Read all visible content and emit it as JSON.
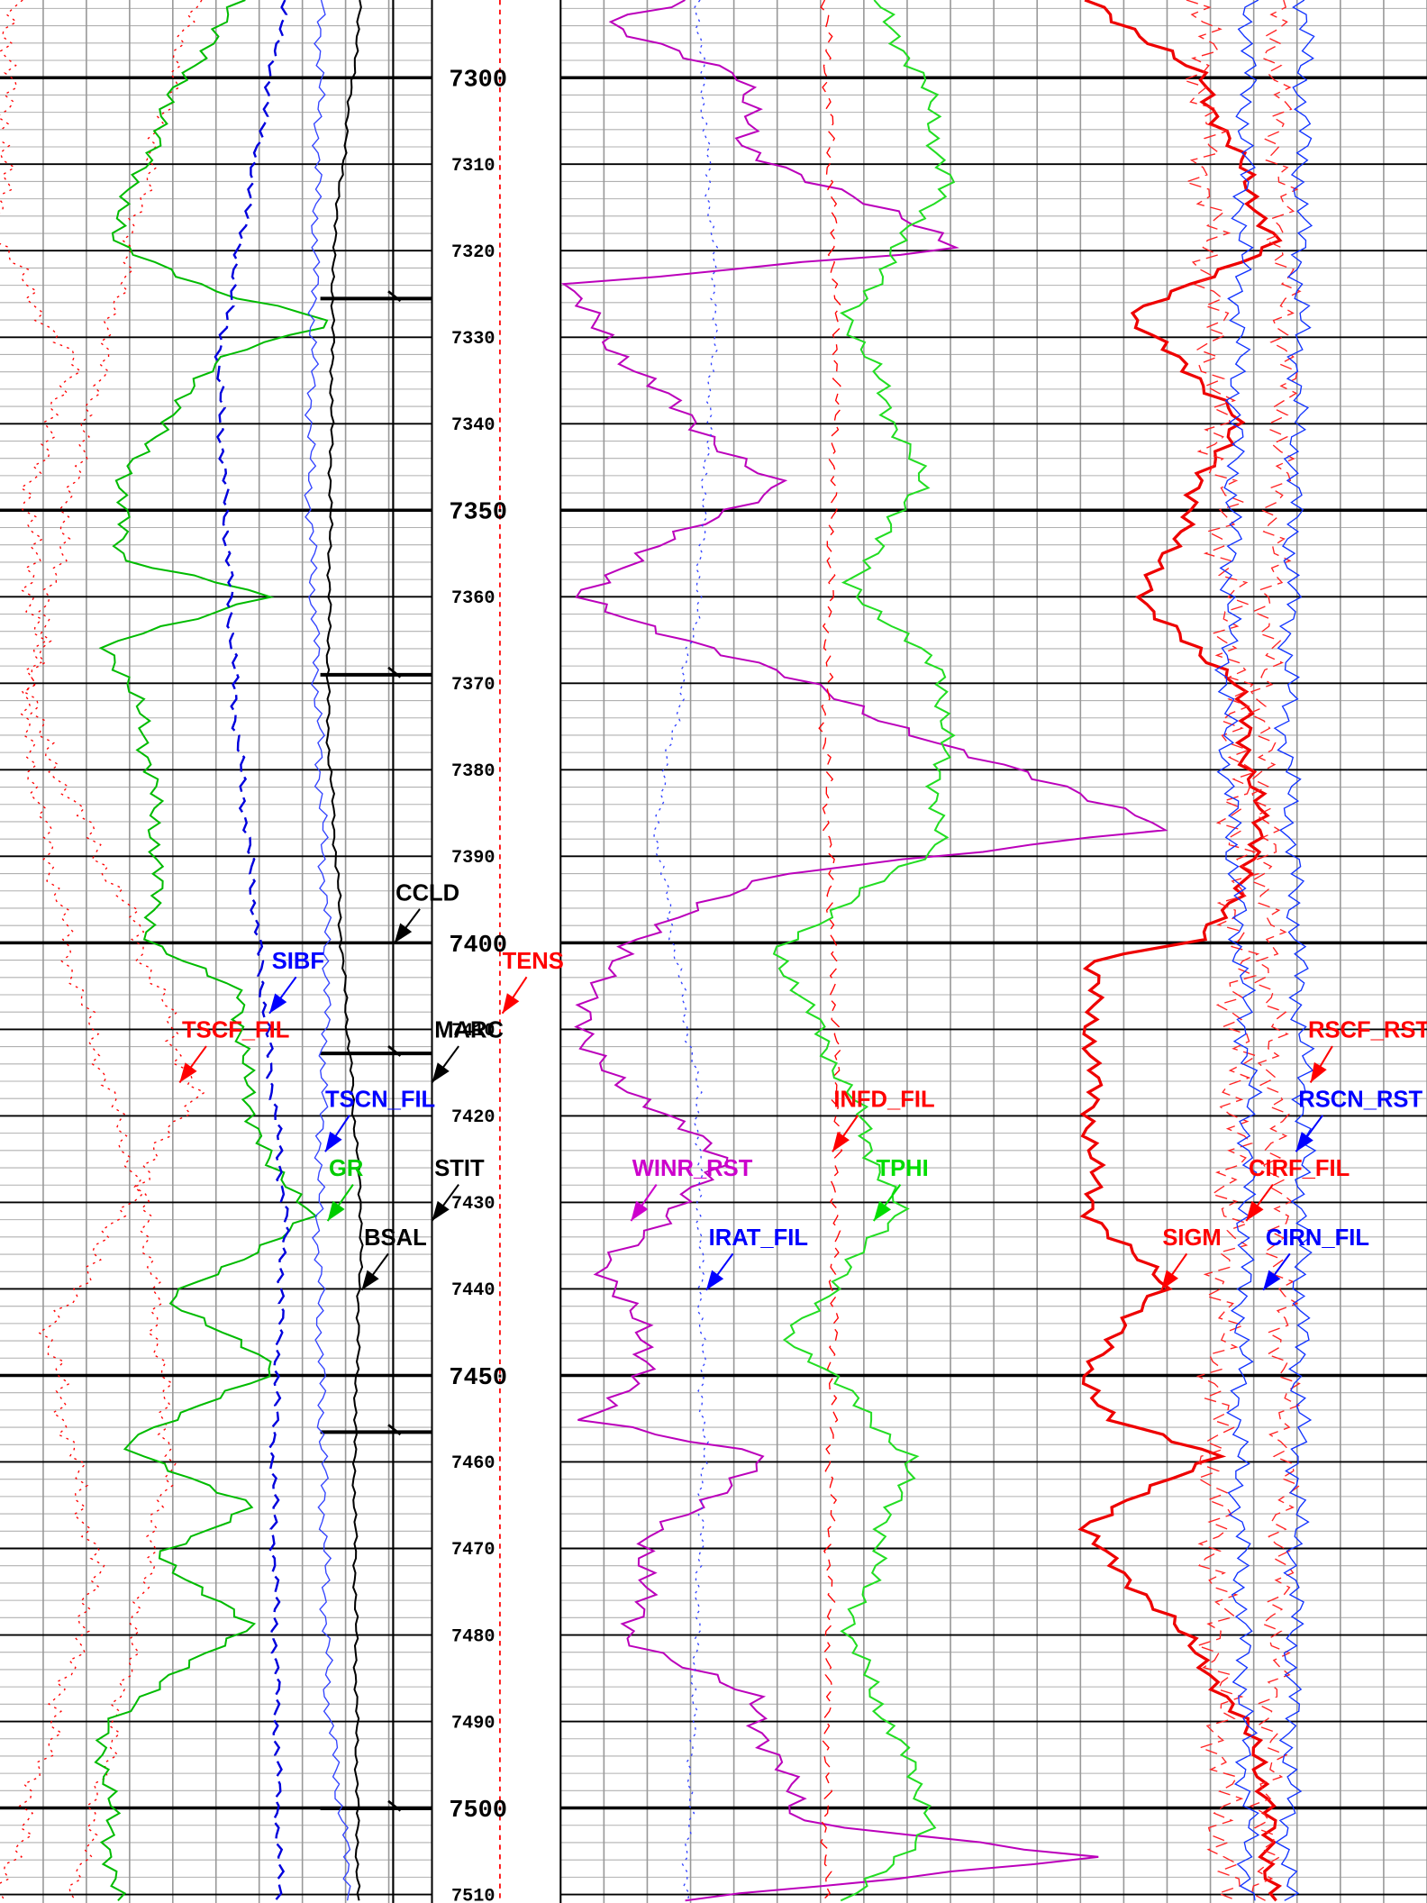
{
  "depth_track": {
    "labels": [
      7300,
      7310,
      7320,
      7330,
      7340,
      7350,
      7360,
      7370,
      7380,
      7390,
      7400,
      7410,
      7420,
      7430,
      7440,
      7450,
      7460,
      7470,
      7480,
      7490,
      7500,
      7510
    ]
  },
  "curve_labels": [
    {
      "text": "CCLD",
      "color": "#000000"
    },
    {
      "text": "SIBF",
      "color": "#0000ff"
    },
    {
      "text": "TENS",
      "color": "#ff0000"
    },
    {
      "text": "TSCF_FIL",
      "color": "#ff0000"
    },
    {
      "text": "MARC",
      "color": "#000000"
    },
    {
      "text": "TSCN_FIL",
      "color": "#0000ff"
    },
    {
      "text": "GR",
      "color": "#00cc00"
    },
    {
      "text": "STIT",
      "color": "#000000"
    },
    {
      "text": "BSAL",
      "color": "#000000"
    },
    {
      "text": "WINR_RST",
      "color": "#cc00cc"
    },
    {
      "text": "INFD_FIL",
      "color": "#ff0000"
    },
    {
      "text": "TPHI",
      "color": "#00dd00"
    },
    {
      "text": "IRAT_FIL",
      "color": "#0000ff"
    },
    {
      "text": "RSCF_RST",
      "color": "#ff0000"
    },
    {
      "text": "RSCN_RST",
      "color": "#0000ff"
    },
    {
      "text": "CIRF_FIL",
      "color": "#ff0000"
    },
    {
      "text": "SIGM",
      "color": "#ff0000"
    },
    {
      "text": "CIRN_FIL",
      "color": "#0000ff"
    }
  ]
}
